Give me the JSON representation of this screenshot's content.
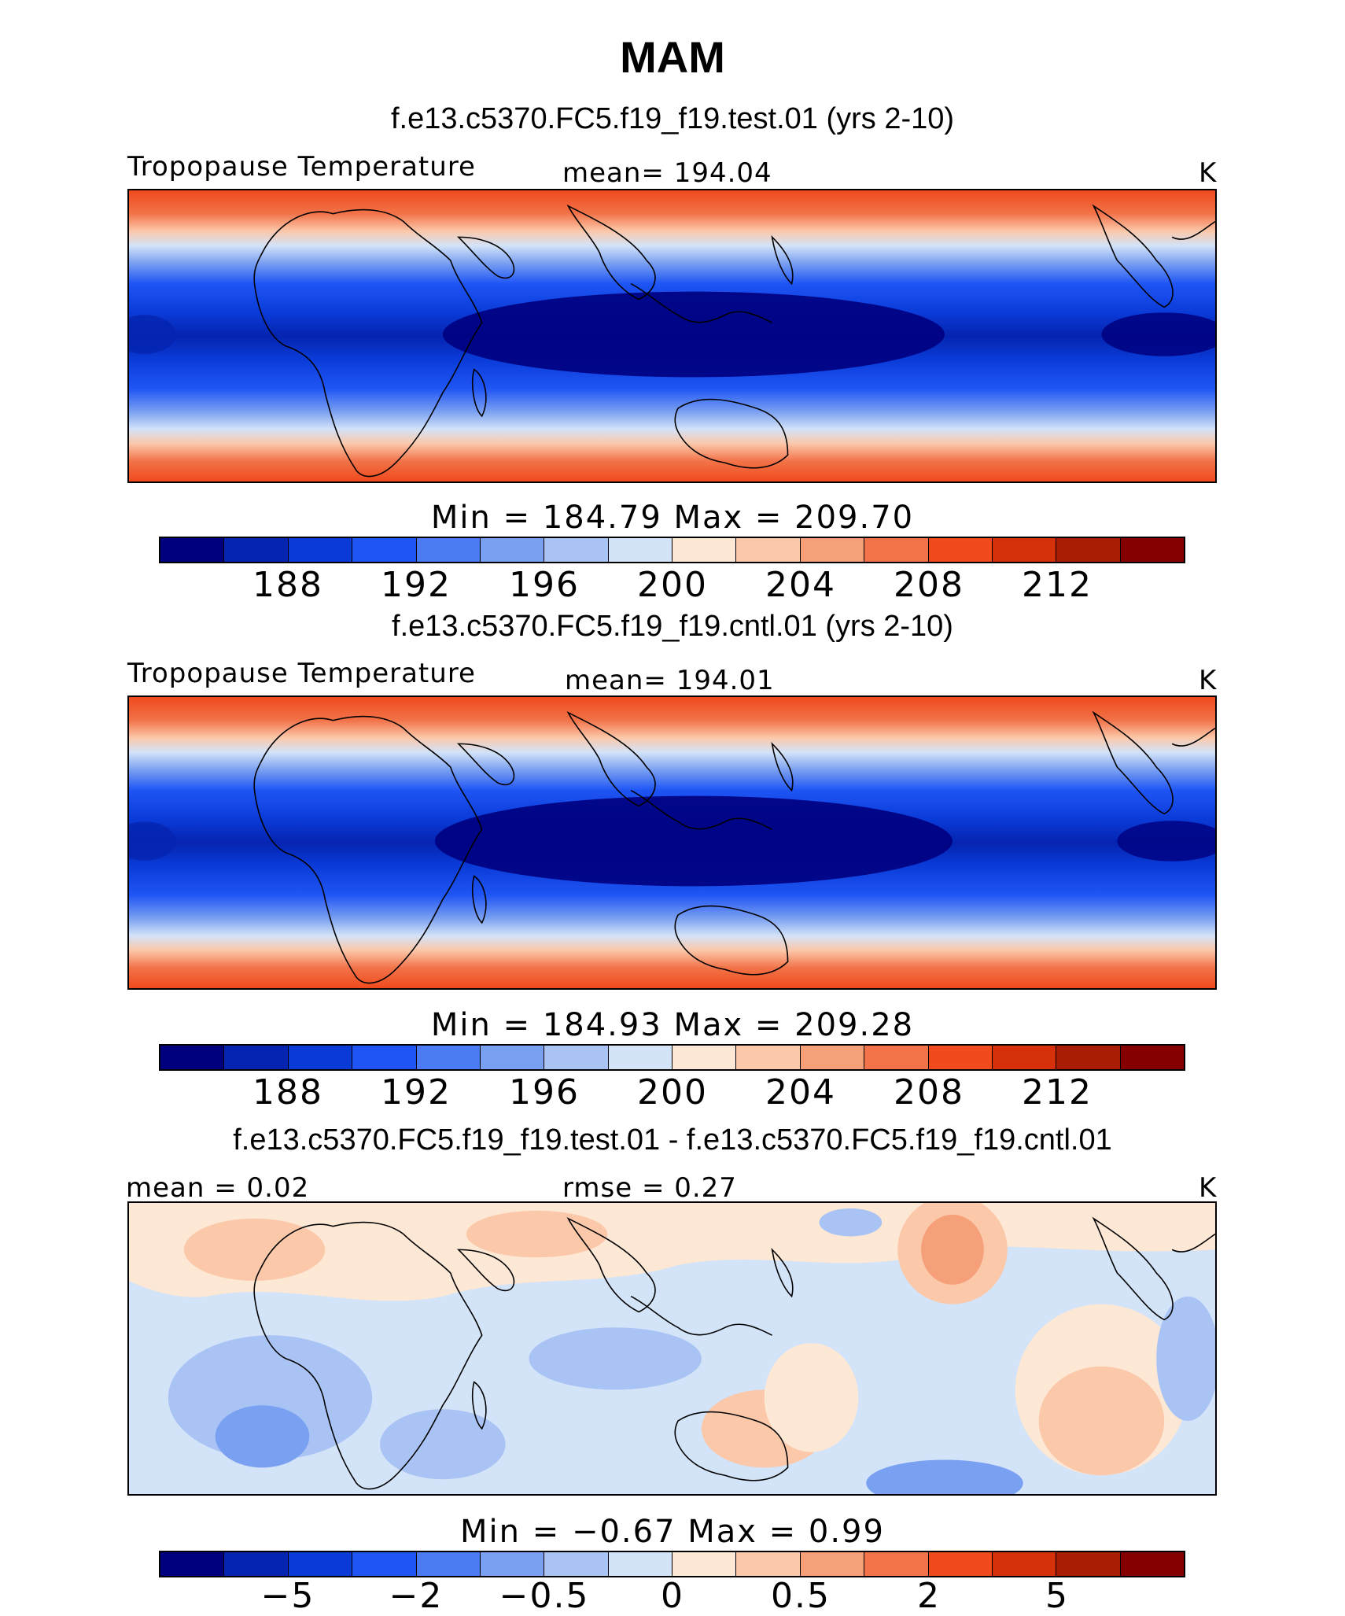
{
  "title": "MAM",
  "panels": [
    {
      "case_title": "f.e13.c5370.FC5.f19_f19.test.01 (yrs 2-10)",
      "left_label": "Tropopause Temperature",
      "center_label": "mean=  194.04",
      "units": "K",
      "minmax": "Min  =  184.79  Max  =  209.70",
      "ticks": [
        "188",
        "192",
        "196",
        "200",
        "204",
        "208",
        "212"
      ]
    },
    {
      "case_title": "f.e13.c5370.FC5.f19_f19.cntl.01 (yrs 2-10)",
      "left_label": "Tropopause Temperature",
      "center_label": "mean=  194.01",
      "units": "K",
      "minmax": "Min  =  184.93  Max  =  209.28",
      "ticks": [
        "188",
        "192",
        "196",
        "200",
        "204",
        "208",
        "212"
      ]
    },
    {
      "case_title": "f.e13.c5370.FC5.f19_f19.test.01 - f.e13.c5370.FC5.f19_f19.cntl.01",
      "left_label": "mean =     0.02",
      "center_label": "rmse =     0.27",
      "units": "K",
      "minmax": "Min  =   −0.67  Max  =      0.99",
      "ticks": [
        "−5",
        "−2",
        "−0.5",
        "0",
        "0.5",
        "2",
        "5"
      ]
    }
  ],
  "colors": {
    "colorbar": [
      "#00007f",
      "#0524b0",
      "#0a3bd8",
      "#1f55f5",
      "#4a7bf3",
      "#7aa0f1",
      "#a9c4f4",
      "#d3e3f8",
      "#fde8d5",
      "#fbc8aa",
      "#f6a07a",
      "#f27349",
      "#f04a1d",
      "#d6300b",
      "#aa1d05",
      "#850000"
    ]
  },
  "chart_data": [
    {
      "type": "heatmap",
      "title": "Tropopause Temperature",
      "units": "K",
      "mean": 194.04,
      "min": 184.79,
      "max": 209.7,
      "levels": [
        188,
        192,
        196,
        200,
        204,
        208,
        212
      ]
    },
    {
      "type": "heatmap",
      "title": "Tropopause Temperature",
      "units": "K",
      "mean": 194.01,
      "min": 184.93,
      "max": 209.28,
      "levels": [
        188,
        192,
        196,
        200,
        204,
        208,
        212
      ]
    },
    {
      "type": "heatmap",
      "title": "test - cntl",
      "units": "K",
      "mean": 0.02,
      "rmse": 0.27,
      "min": -0.67,
      "max": 0.99,
      "levels": [
        -5,
        -2,
        -0.5,
        0,
        0.5,
        2,
        5
      ]
    }
  ]
}
